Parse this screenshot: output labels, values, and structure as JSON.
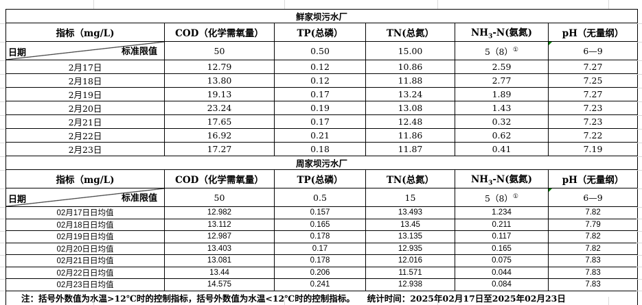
{
  "colors": {
    "background": "#ffffff",
    "table_border": "#000000",
    "sheet_gridline": "#d9d9d9",
    "flag_green": "#008000",
    "text": "#000000"
  },
  "columns": {
    "metric": "指标（mg/L)",
    "cod": "COD（化学需氧量）",
    "tp": "TP(总磷）",
    "tn": "TN(总氮）",
    "nh3n_pre": "NH",
    "nh3n_sub": "3",
    "nh3n_post": "-N(氨氮)",
    "ph": "pH（无量纲）"
  },
  "corner": {
    "date_label": "日期",
    "limit_label": "标准限值"
  },
  "plant1": {
    "title": "鲜家坝污水厂",
    "limits": {
      "cod": "50",
      "tp": "0.50",
      "tn": "15.00",
      "nh3n": "5（8）",
      "nh3n_sup": "①",
      "ph": "6—9"
    },
    "rows": [
      [
        "2月17日",
        "12.79",
        "0.12",
        "10.86",
        "2.59",
        "7.27"
      ],
      [
        "2月18日",
        "13.80",
        "0.12",
        "11.88",
        "2.77",
        "7.25"
      ],
      [
        "2月19日",
        "19.13",
        "0.17",
        "13.24",
        "1.89",
        "7.27"
      ],
      [
        "2月20日",
        "23.24",
        "0.19",
        "13.08",
        "1.43",
        "7.23"
      ],
      [
        "2月21日",
        "17.65",
        "0.17",
        "12.48",
        "0.32",
        "7.23"
      ],
      [
        "2月22日",
        "16.92",
        "0.21",
        "11.86",
        "0.62",
        "7.22"
      ],
      [
        "2月23日",
        "17.27",
        "0.18",
        "11.87",
        "0.41",
        "7.19"
      ]
    ]
  },
  "plant2": {
    "title": "周家坝污水厂",
    "limits": {
      "cod": "50",
      "tp": "0.5",
      "tn": "15",
      "nh3n": "5（8）",
      "nh3n_sup": "①",
      "ph": "6—9"
    },
    "rows": [
      [
        "02月17日日均值",
        "12.982",
        "0.157",
        "13.493",
        "1.234",
        "7.82"
      ],
      [
        "02月18日日均值",
        "13.112",
        "0.165",
        "13.45",
        "0.211",
        "7.79"
      ],
      [
        "02月19日日均值",
        "12.987",
        "0.178",
        "13.135",
        "0.117",
        "7.82"
      ],
      [
        "02月20日日均值",
        "13.403",
        "0.17",
        "12.935",
        "0.165",
        "7.82"
      ],
      [
        "02月21日日均值",
        "13.081",
        "0.178",
        "12.016",
        "0.075",
        "7.83"
      ],
      [
        "02月22日日均值",
        "13.44",
        "0.206",
        "11.571",
        "0.044",
        "7.83"
      ],
      [
        "02月23日日均值",
        "14.575",
        "0.241",
        "12.938",
        "0.084",
        "7.83"
      ]
    ]
  },
  "note": {
    "main": "注：括号外数值为水温>12℃时的控制指标，括号外数值为水温<12℃时的控制指标。",
    "stats": "统计时间：2025年02月17日至2025年02月23日"
  }
}
